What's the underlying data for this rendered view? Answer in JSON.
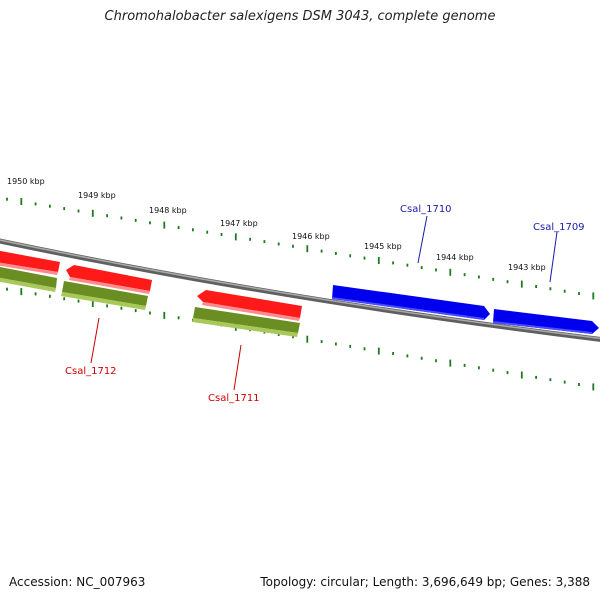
{
  "title": "Chromohalobacter salexigens DSM 3043, complete genome",
  "accession": "Accession: NC_007963",
  "summary": "Topology: circular; Length: 3,696,649 bp; Genes: 3,388",
  "scale_labels": [
    "1950 kbp",
    "1949 kbp",
    "1948 kbp",
    "1947 kbp",
    "1946 kbp",
    "1945 kbp",
    "1944 kbp",
    "1943 kbp"
  ],
  "genes": [
    {
      "name": "Csal_1712",
      "strand": "reverse",
      "color": "#cc0000"
    },
    {
      "name": "Csal_1711",
      "strand": "reverse",
      "color": "#cc0000"
    },
    {
      "name": "Csal_1710",
      "strand": "forward",
      "color": "#1a1aaa"
    },
    {
      "name": "Csal_1709",
      "strand": "forward",
      "color": "#1a1aaa"
    }
  ],
  "colors": {
    "forward_cds": "#0000ee",
    "reverse_cds": "#ee0000",
    "reverse_gene": "#6b8e23",
    "backbone": "#808080",
    "ticks": "#1f7a1f"
  }
}
